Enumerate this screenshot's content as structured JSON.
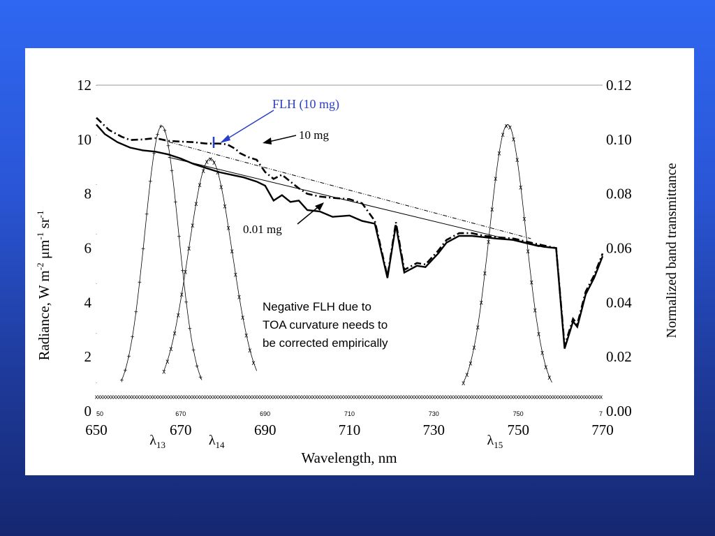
{
  "chart_data": {
    "type": "line",
    "xlabel": "Wavelength, nm",
    "ylabel_main": "Radiance, W m",
    "ylabel_sup1": "-2",
    "ylabel_mid": " μm",
    "ylabel_sup2": "-1",
    "ylabel_end": " sr",
    "ylabel_sup3": "-1",
    "y2label": "Normalized band transmittance",
    "xlim": [
      650,
      770
    ],
    "ylim": [
      0,
      12
    ],
    "y2lim": [
      0.0,
      0.12
    ],
    "x_ticks": [
      "650",
      "670",
      "690",
      "710",
      "730",
      "750",
      "770"
    ],
    "x_minor_ticks": [
      "50",
      "670",
      "690",
      "710",
      "730",
      "750",
      "7"
    ],
    "y_ticks": [
      "0",
      "2",
      "4",
      "6",
      "8",
      "10",
      "12"
    ],
    "y2_ticks": [
      "0.00",
      "0.02",
      "0.04",
      "0.06",
      "0.08",
      "0.10",
      "0.12"
    ],
    "band_labels": [
      {
        "base": "λ",
        "sub": "13",
        "x": 664.5
      },
      {
        "base": "λ",
        "sub": "14",
        "x": 678.5
      },
      {
        "base": "λ",
        "sub": "15",
        "x": 744.5
      }
    ],
    "annotations": {
      "flh": "FLH (10 mg)",
      "high": "10 mg",
      "low": "0.01 mg",
      "note_lines": [
        "Negative FLH due to",
        "TOA curvature needs to",
        "be corrected empirically"
      ]
    },
    "colors": {
      "flh": "#2a3fc9",
      "series": "#000000"
    },
    "series": [
      {
        "name": "10 mg",
        "style": "dash-dot",
        "x": [
          650,
          653,
          656,
          658,
          661,
          664,
          667,
          670,
          673,
          676,
          679,
          681,
          683,
          684,
          686,
          688,
          690,
          692,
          694,
          696,
          698,
          700,
          703,
          706,
          710,
          713,
          716,
          719,
          721,
          723,
          726,
          728,
          731,
          733,
          736,
          739,
          742,
          745,
          749,
          753,
          756,
          759,
          761,
          763,
          764,
          766,
          768,
          770
        ],
        "y": [
          10.8,
          10.35,
          10.1,
          9.98,
          10.0,
          10.05,
          9.95,
          9.92,
          9.9,
          9.85,
          9.85,
          9.82,
          9.65,
          9.5,
          9.35,
          9.25,
          8.8,
          8.55,
          8.7,
          8.45,
          8.2,
          8.0,
          7.9,
          7.85,
          7.8,
          7.65,
          7.0,
          4.95,
          6.95,
          5.2,
          5.45,
          5.4,
          5.9,
          6.3,
          6.55,
          6.55,
          6.45,
          6.4,
          6.35,
          6.2,
          6.1,
          6.0,
          2.4,
          3.4,
          3.2,
          4.4,
          5.0,
          5.8
        ]
      },
      {
        "name": "0.01 mg",
        "style": "solid",
        "x": [
          650,
          652,
          655,
          658,
          661,
          664,
          667,
          670,
          673,
          676,
          679,
          682,
          685,
          688,
          690,
          692,
          694,
          696,
          698,
          700,
          703,
          706,
          710,
          713,
          716,
          719,
          721,
          723,
          726,
          728,
          731,
          733,
          736,
          739,
          742,
          745,
          749,
          753,
          756,
          759,
          761,
          763,
          764,
          766,
          768,
          770
        ],
        "y": [
          10.55,
          10.2,
          9.9,
          9.7,
          9.6,
          9.55,
          9.45,
          9.3,
          9.1,
          8.95,
          8.8,
          8.7,
          8.6,
          8.45,
          8.3,
          7.75,
          7.95,
          7.7,
          7.75,
          7.4,
          7.35,
          7.15,
          7.2,
          7.0,
          6.9,
          4.9,
          6.85,
          5.1,
          5.35,
          5.3,
          5.8,
          6.2,
          6.45,
          6.45,
          6.4,
          6.35,
          6.3,
          6.15,
          6.05,
          6.0,
          2.3,
          3.3,
          3.1,
          4.3,
          4.9,
          5.7
        ]
      },
      {
        "name": "",
        "style": "baseline-10mg",
        "x": [
          665,
          753
        ],
        "y": [
          10.0,
          6.35
        ]
      },
      {
        "name": "",
        "style": "baseline-001mg",
        "x": [
          667,
          755
        ],
        "y": [
          9.35,
          6.05
        ]
      }
    ],
    "bands": [
      {
        "center": 665.5,
        "sigma": 4.0,
        "peak": 0.0995,
        "marker": "+",
        "range": [
          656,
          675
        ]
      },
      {
        "center": 677.0,
        "sigma": 5.2,
        "peak": 0.0875,
        "marker": "x",
        "range": [
          666,
          688
        ]
      },
      {
        "center": 747.5,
        "sigma": 4.3,
        "peak": 0.1,
        "marker": "x",
        "range": [
          737,
          758
        ]
      }
    ],
    "band_floor": 0.0055
  }
}
